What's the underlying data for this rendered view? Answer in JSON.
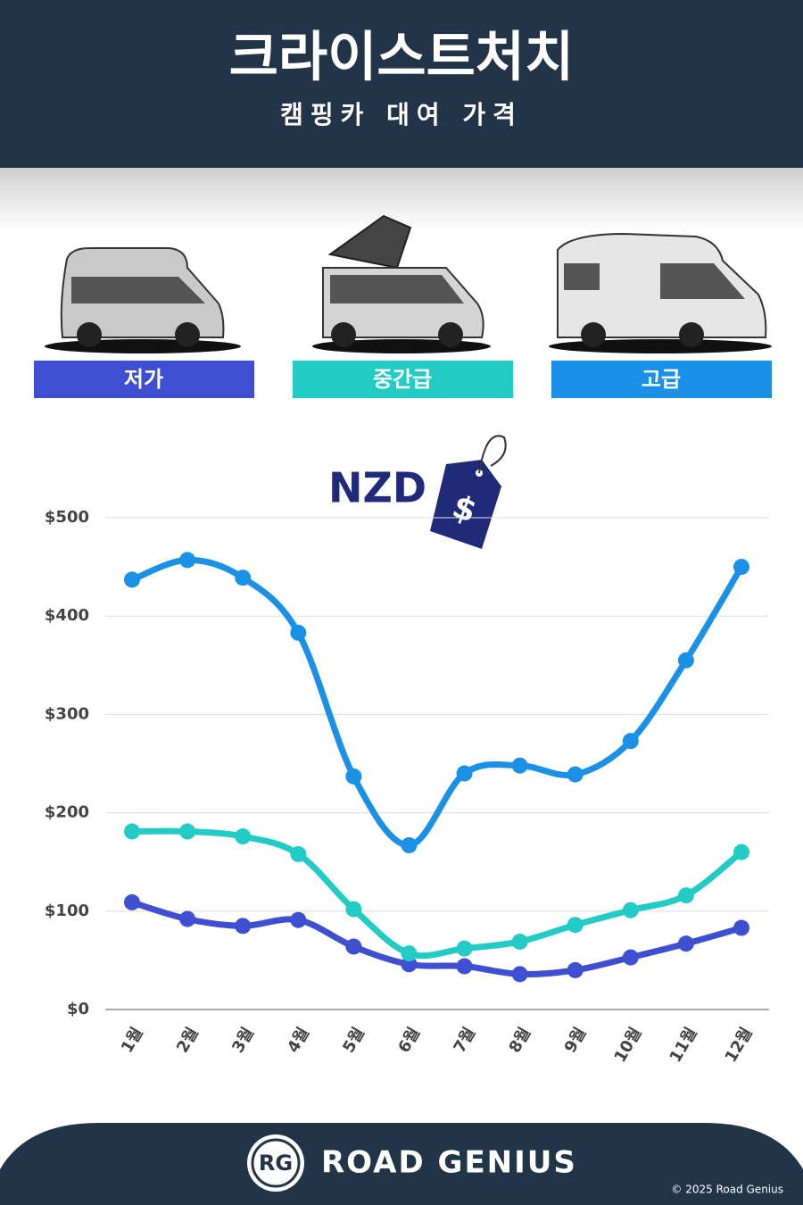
{
  "chart_data": {
    "type": "line",
    "title": "크라이스트처치",
    "subtitle": "캠핑카 대여 가격",
    "currency": "NZD",
    "categories": [
      "1월",
      "2월",
      "3월",
      "4월",
      "5월",
      "6월",
      "7월",
      "8월",
      "9월",
      "10월",
      "11월",
      "12월"
    ],
    "series": [
      {
        "name": "저가",
        "color": "#3f4fd1",
        "values": [
          109,
          92,
          85,
          91,
          64,
          46,
          44,
          36,
          40,
          53,
          67,
          83
        ]
      },
      {
        "name": "중간급",
        "color": "#22cbc4",
        "values": [
          181,
          181,
          176,
          158,
          102,
          57,
          62,
          69,
          86,
          101,
          116,
          160
        ]
      },
      {
        "name": "고급",
        "color": "#1a90e6",
        "values": [
          437,
          457,
          439,
          383,
          237,
          167,
          240,
          248,
          239,
          273,
          355,
          450
        ]
      }
    ],
    "ylim": [
      0,
      500
    ],
    "yticks": [
      {
        "value": 0,
        "label": "$0"
      },
      {
        "value": 100,
        "label": "$100"
      },
      {
        "value": 200,
        "label": "$200"
      },
      {
        "value": 300,
        "label": "$300"
      },
      {
        "value": 400,
        "label": "$400"
      },
      {
        "value": 500,
        "label": "$500"
      }
    ],
    "grid": true
  },
  "brand": {
    "logo": "RG",
    "name": "ROAD GENIUS",
    "copyright": "© 2025 Road Genius"
  }
}
